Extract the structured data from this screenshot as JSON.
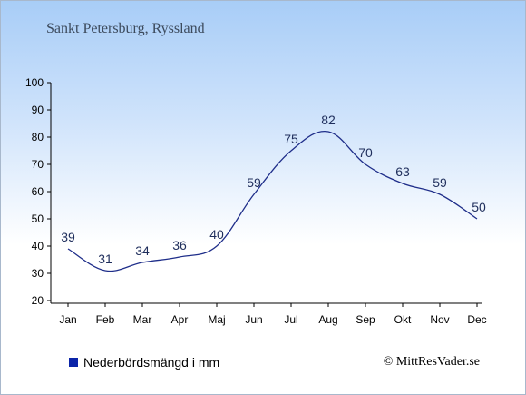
{
  "location": "Sankt Petersburg, Ryssland",
  "legend": {
    "label": "Nederbördsmängd i mm",
    "color": "#0b24a8"
  },
  "copyright": "© MittResVader.se",
  "chart_data": {
    "type": "line",
    "title": "",
    "xlabel": "",
    "ylabel": "",
    "categories": [
      "Jan",
      "Feb",
      "Mar",
      "Apr",
      "Maj",
      "Jun",
      "Jul",
      "Aug",
      "Sep",
      "Okt",
      "Nov",
      "Dec"
    ],
    "series": [
      {
        "name": "Nederbördsmängd i mm",
        "values": [
          39,
          31,
          34,
          36,
          40,
          59,
          75,
          82,
          70,
          63,
          59,
          50
        ],
        "color": "#1f2e8a"
      }
    ],
    "ylim": [
      20,
      100
    ],
    "yticks": [
      20,
      30,
      40,
      50,
      60,
      70,
      80,
      90,
      100
    ],
    "grid": false,
    "legend_position": "bottom-left"
  }
}
